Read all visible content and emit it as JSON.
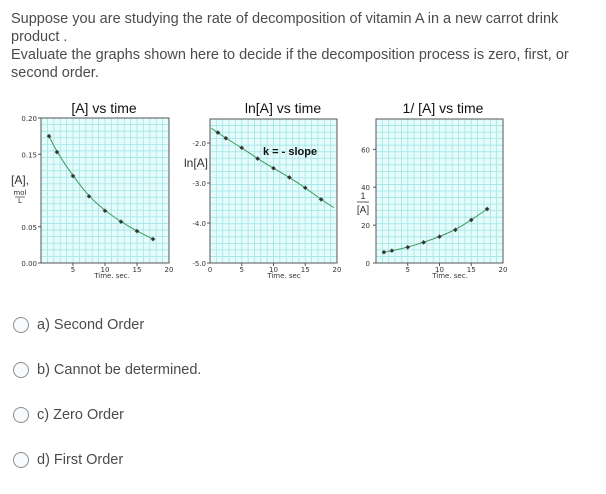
{
  "question": {
    "line1": "Suppose you are studying the rate of decomposition of vitamin A in a new carrot drink product .",
    "line2": "Evaluate the graphs shown here to decide if the decomposition process is zero, first, or second order."
  },
  "colors": {
    "plot_bg": "#e6fbfb",
    "grid": "#9fe6e6",
    "axis": "#555555",
    "curve": "#3c9a5a",
    "marker": "#333333",
    "text": "#494c4e"
  },
  "chart_data": [
    {
      "type": "line",
      "title": "[A]  vs time",
      "xlabel": "Time. sec.",
      "ylabel": "[A], mol/L",
      "xlim": [
        0,
        20
      ],
      "ylim": [
        0,
        0.2
      ],
      "xticks": [
        "5",
        "10",
        "15",
        "20"
      ],
      "yticks": [
        "0.00",
        "0.05",
        "0.15",
        "0.20"
      ],
      "grid": true,
      "x": [
        1.25,
        2.5,
        5,
        7.5,
        10,
        12.5,
        15,
        17.5
      ],
      "values": [
        0.175,
        0.153,
        0.12,
        0.092,
        0.072,
        0.057,
        0.044,
        0.033
      ]
    },
    {
      "type": "line",
      "title": "ln[A] vs time",
      "xlabel": "Time. sec",
      "ylabel": "ln[A]",
      "xlim": [
        0,
        20
      ],
      "ylim": [
        -5.0,
        -1.4
      ],
      "xticks": [
        "0",
        "5",
        "10",
        "15",
        "20"
      ],
      "yticks": [
        "-2.0",
        "-3.0",
        "-4.0",
        "-5.0"
      ],
      "grid": true,
      "annotation": "k = - slope",
      "x": [
        1.25,
        2.5,
        5,
        7.5,
        10,
        12.5,
        15,
        17.5
      ],
      "values": [
        -1.74,
        -1.88,
        -2.12,
        -2.39,
        -2.63,
        -2.86,
        -3.12,
        -3.41
      ]
    },
    {
      "type": "line",
      "title": "1/ [A] vs time",
      "xlabel": "Time. sec.",
      "ylabel": "1/[A]",
      "xlim": [
        0,
        20
      ],
      "ylim": [
        0,
        76
      ],
      "xticks": [
        "5",
        "10",
        "15",
        "20"
      ],
      "yticks": [
        "0",
        "20",
        "40",
        "60"
      ],
      "grid": true,
      "x": [
        1.25,
        2.5,
        5,
        7.5,
        10,
        12.5,
        15,
        17.5
      ],
      "values": [
        5.7,
        6.5,
        8.3,
        10.9,
        13.9,
        17.5,
        22.7,
        28.5
      ]
    }
  ],
  "options": [
    {
      "label": "a) Second Order",
      "selected": false
    },
    {
      "label": "b) Cannot be determined.",
      "selected": false
    },
    {
      "label": "c) Zero Order",
      "selected": false
    },
    {
      "label": "d) First Order",
      "selected": false
    }
  ]
}
